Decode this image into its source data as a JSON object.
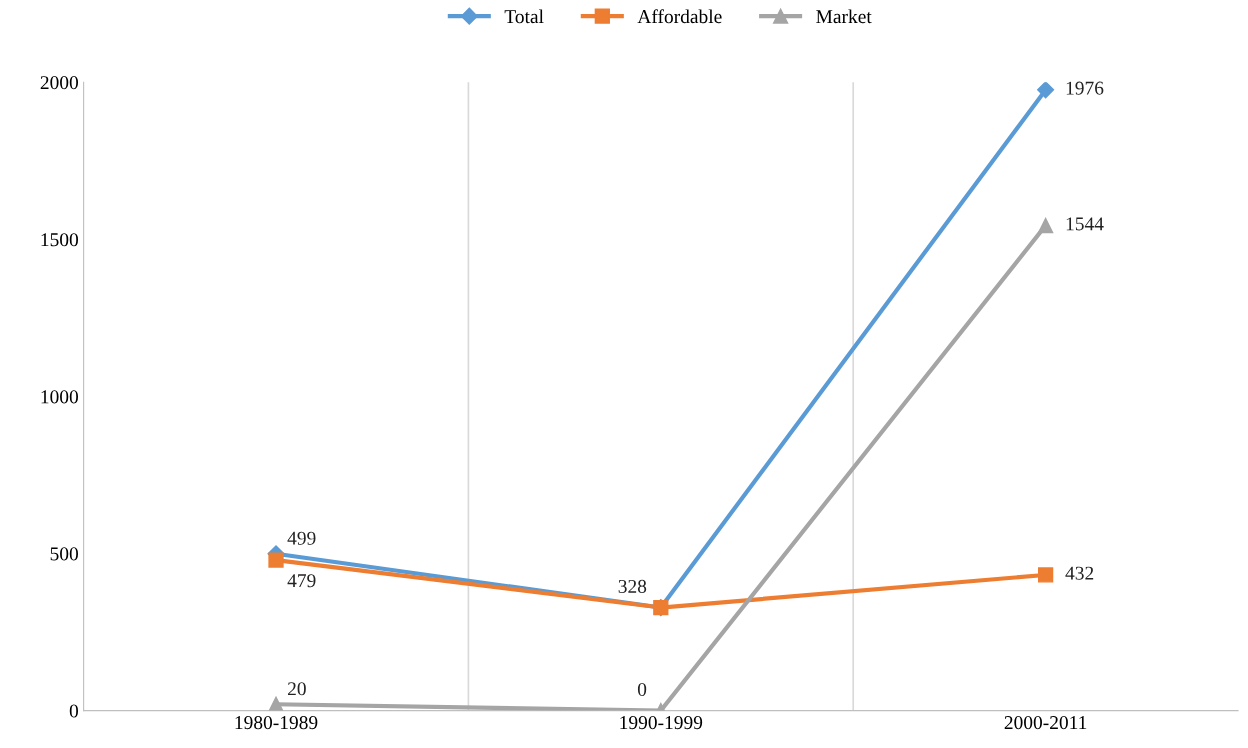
{
  "chart_data": {
    "type": "line",
    "categories": [
      "1980-1989",
      "1990-1999",
      "2000-2011"
    ],
    "series": [
      {
        "name": "Total",
        "color": "#5b9bd5",
        "marker": "diamond",
        "values": [
          499,
          328,
          1976
        ],
        "value_labels": [
          "499",
          "328",
          "1976"
        ]
      },
      {
        "name": "Affordable",
        "color": "#ed7d31",
        "marker": "square",
        "values": [
          479,
          328,
          432
        ],
        "value_labels": [
          "479",
          null,
          "432"
        ]
      },
      {
        "name": "Market",
        "color": "#a5a5a5",
        "marker": "triangle",
        "values": [
          20,
          0,
          1544
        ],
        "value_labels": [
          "20",
          "0",
          "1544"
        ]
      }
    ],
    "ylim": [
      0,
      2000
    ],
    "yticks": [
      0,
      500,
      1000,
      1500,
      2000
    ],
    "grid": "x",
    "legend": "top",
    "line_style": "solid"
  }
}
